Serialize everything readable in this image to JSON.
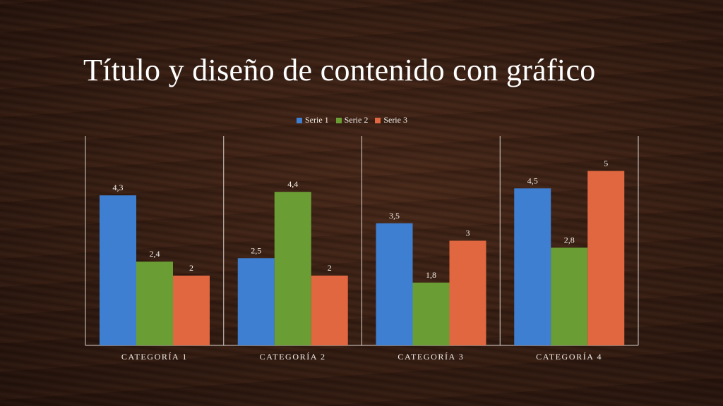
{
  "slide": {
    "title": "Título y diseño de contenido con gráfico"
  },
  "legend": [
    {
      "name": "Serie 1",
      "color": "#3f7fd1"
    },
    {
      "name": "Serie 2",
      "color": "#6a9e34"
    },
    {
      "name": "Serie 3",
      "color": "#e0673f"
    }
  ],
  "chart_data": {
    "type": "bar",
    "categories": [
      "CATEGORÍA 1",
      "CATEGORÍA 2",
      "CATEGORÍA 3",
      "CATEGORÍA 4"
    ],
    "series": [
      {
        "name": "Serie 1",
        "values": [
          4.3,
          2.5,
          3.5,
          4.5
        ],
        "labels": [
          "4,3",
          "2,5",
          "3,5",
          "4,5"
        ],
        "color": "#3f7fd1"
      },
      {
        "name": "Serie 2",
        "values": [
          2.4,
          4.4,
          1.8,
          2.8
        ],
        "labels": [
          "2,4",
          "4,4",
          "1,8",
          "2,8"
        ],
        "color": "#6a9e34"
      },
      {
        "name": "Serie 3",
        "values": [
          2,
          2,
          3,
          5
        ],
        "labels": [
          "2",
          "2",
          "3",
          "5"
        ],
        "color": "#e0673f"
      }
    ],
    "title": "",
    "xlabel": "",
    "ylabel": "",
    "ylim": [
      0,
      6
    ],
    "grid": false,
    "legend_position": "top"
  }
}
